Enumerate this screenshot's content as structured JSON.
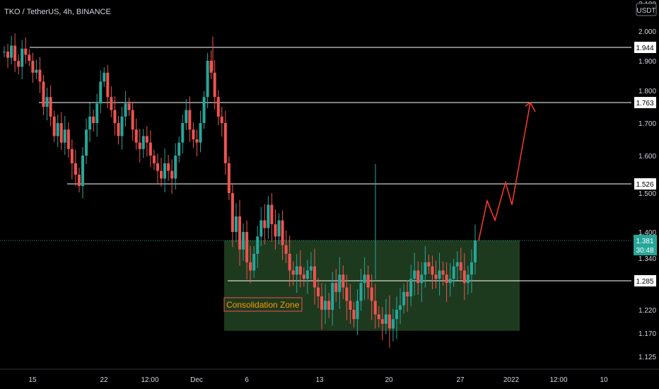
{
  "header": {
    "symbol_line": "TKO / TetherUS, 4h, BINANCE"
  },
  "currency_badge": "USDT",
  "colors": {
    "background": "#000000",
    "up": "#26a69a",
    "down": "#ef5350",
    "zone_fill": "#1e3a1e",
    "projection": "#ff3b30",
    "label_text": "#ff9800",
    "current_price_bg": "#26a69a",
    "level_line": "#ffffff",
    "axis_text": "#d1d4dc"
  },
  "chart_data": {
    "type": "candlestick",
    "symbol": "TKO / TetherUS",
    "interval": "4h",
    "exchange": "BINANCE",
    "y_ticks": [
      "2.100",
      "2.000",
      "1.900",
      "1.800",
      "1.700",
      "1.600",
      "1.500",
      "1.400",
      "1.340",
      "1.285",
      "1.220",
      "1.170",
      "1.125"
    ],
    "x_ticks": [
      "15",
      "22",
      "12:00",
      "Dec",
      "6",
      "13",
      "20",
      "27",
      "2022",
      "12:00",
      "10"
    ],
    "levels": [
      {
        "price": 1.944,
        "label": "1.944"
      },
      {
        "price": 1.763,
        "label": "1.763"
      },
      {
        "price": 1.526,
        "label": "1.526"
      },
      {
        "price": 1.285,
        "label": "1.285"
      }
    ],
    "current_price": {
      "value": 1.381,
      "label": "1.381",
      "countdown": "30:48"
    },
    "consolidation_zone": {
      "label": "Consolidation Zone",
      "high": 1.381,
      "low": 1.175
    },
    "projected_path": [
      1.381,
      1.48,
      1.43,
      1.53,
      1.47,
      1.763
    ],
    "price_series": [
      1.93,
      1.91,
      1.95,
      1.9,
      1.88,
      1.94,
      1.92,
      1.9,
      1.86,
      1.87,
      1.83,
      1.75,
      1.78,
      1.72,
      1.66,
      1.7,
      1.64,
      1.68,
      1.62,
      1.58,
      1.55,
      1.52,
      1.6,
      1.68,
      1.72,
      1.7,
      1.76,
      1.83,
      1.86,
      1.78,
      1.74,
      1.7,
      1.66,
      1.72,
      1.76,
      1.74,
      1.68,
      1.64,
      1.62,
      1.66,
      1.64,
      1.6,
      1.58,
      1.56,
      1.54,
      1.58,
      1.56,
      1.54,
      1.6,
      1.64,
      1.7,
      1.74,
      1.68,
      1.65,
      1.64,
      1.7,
      1.78,
      1.9,
      1.86,
      1.78,
      1.72,
      1.7,
      1.58,
      1.5,
      1.4,
      1.44,
      1.36,
      1.4,
      1.33,
      1.31,
      1.35,
      1.39,
      1.43,
      1.41,
      1.47,
      1.42,
      1.39,
      1.43,
      1.37,
      1.35,
      1.31,
      1.3,
      1.32,
      1.3,
      1.29,
      1.31,
      1.32,
      1.27,
      1.25,
      1.22,
      1.24,
      1.22,
      1.28,
      1.26,
      1.3,
      1.27,
      1.24,
      1.22,
      1.2,
      1.24,
      1.28,
      1.3,
      1.27,
      1.24,
      1.21,
      1.2,
      1.19,
      1.21,
      1.18,
      1.2,
      1.22,
      1.23,
      1.26,
      1.25,
      1.29,
      1.31,
      1.28,
      1.3,
      1.33,
      1.32,
      1.3,
      1.29,
      1.31,
      1.3,
      1.28,
      1.29,
      1.32,
      1.33,
      1.31,
      1.28,
      1.3,
      1.33,
      1.381
    ]
  },
  "annotations": {
    "zone_label": "Consolidation Zone"
  }
}
